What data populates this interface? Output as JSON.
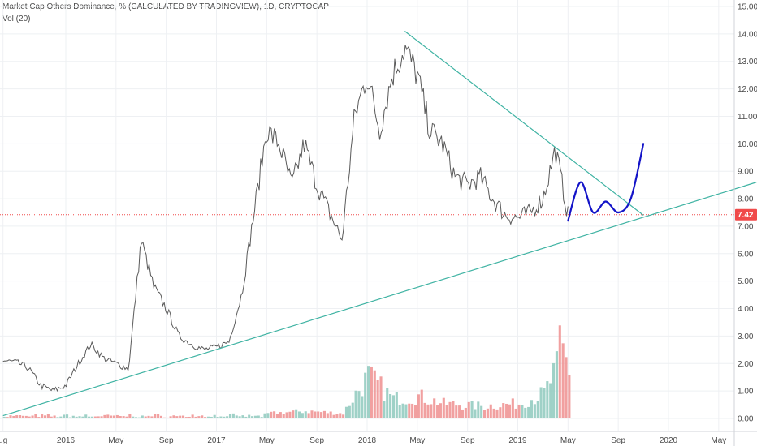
{
  "header": {
    "title": "Market Cap Others Dominance, % (CALCULATED BY TRADINGVIEW), 1D, CRYPTOCAP",
    "volume_label": "Vol (20)"
  },
  "colors": {
    "up": "#8ec9bd",
    "down": "#ef8f8f",
    "price_line": "#5a5a5a",
    "trendline": "#3fb3a3",
    "projection": "#1414c8",
    "last_price_line": "#f04a4a",
    "grid": "#eef0f3",
    "axis_text": "#4a4a4a",
    "price_tag_bg": "#f04a4a"
  },
  "price_tag": {
    "value": 7.42,
    "label": "7.42"
  },
  "chart_data": {
    "type": "line",
    "title": "Market Cap Others Dominance, % (CALCULATED BY TRADINGVIEW), 1D, CRYPTOCAP",
    "ylabel": "",
    "xlabel": "",
    "ylim": [
      -0.3,
      15.2
    ],
    "grid": true,
    "y_ticks": [
      {
        "value": 0,
        "label": "0.00"
      },
      {
        "value": 1,
        "label": "1.00"
      },
      {
        "value": 2,
        "label": "2.00"
      },
      {
        "value": 3,
        "label": "3.00"
      },
      {
        "value": 4,
        "label": "4.00"
      },
      {
        "value": 5,
        "label": "5.00"
      },
      {
        "value": 6,
        "label": "6.00"
      },
      {
        "value": 7,
        "label": "7.00"
      },
      {
        "value": 8,
        "label": "8.00"
      },
      {
        "value": 9,
        "label": "9.00"
      },
      {
        "value": 10,
        "label": "10.00"
      },
      {
        "value": 11,
        "label": "11.00"
      },
      {
        "value": 12,
        "label": "12.00"
      },
      {
        "value": 13,
        "label": "13.00"
      },
      {
        "value": 14,
        "label": "14.00"
      },
      {
        "value": 15,
        "label": "15.00"
      }
    ],
    "x_ticks": [
      {
        "x": "2015-08",
        "label": "ug"
      },
      {
        "x": "2016-01",
        "label": "2016"
      },
      {
        "x": "2016-05",
        "label": "May"
      },
      {
        "x": "2016-09",
        "label": "Sep"
      },
      {
        "x": "2017-01",
        "label": "2017"
      },
      {
        "x": "2017-05",
        "label": "May"
      },
      {
        "x": "2017-09",
        "label": "Sep"
      },
      {
        "x": "2018-01",
        "label": "2018"
      },
      {
        "x": "2018-05",
        "label": "May"
      },
      {
        "x": "2018-09",
        "label": "Sep"
      },
      {
        "x": "2019-01",
        "label": "2019"
      },
      {
        "x": "2019-05",
        "label": "May"
      },
      {
        "x": "2019-09",
        "label": "Sep"
      },
      {
        "x": "2020-01",
        "label": "2020"
      },
      {
        "x": "2020-05",
        "label": "May"
      }
    ],
    "series": [
      {
        "name": "Market Cap Others Dominance",
        "points": [
          [
            "2015-08",
            2.1
          ],
          [
            "2015-09",
            2.05
          ],
          [
            "2015-10",
            1.85
          ],
          [
            "2015-11",
            1.2
          ],
          [
            "2015-12",
            1.0
          ],
          [
            "2016-01",
            1.2
          ],
          [
            "2016-02",
            2.0
          ],
          [
            "2016-03",
            2.7
          ],
          [
            "2016-04",
            2.2
          ],
          [
            "2016-05",
            2.0
          ],
          [
            "2016-06",
            1.8
          ],
          [
            "2016-07",
            6.5
          ],
          [
            "2016-08",
            4.8
          ],
          [
            "2016-09",
            4.0
          ],
          [
            "2016-10",
            3.0
          ],
          [
            "2016-11",
            2.7
          ],
          [
            "2016-12",
            2.5
          ],
          [
            "2017-01",
            2.6
          ],
          [
            "2017-02",
            2.8
          ],
          [
            "2017-03",
            4.5
          ],
          [
            "2017-04",
            7.5
          ],
          [
            "2017-05",
            10.5
          ],
          [
            "2017-06",
            10.0
          ],
          [
            "2017-07",
            8.5
          ],
          [
            "2017-08",
            10.0
          ],
          [
            "2017-09",
            8.5
          ],
          [
            "2017-10",
            7.5
          ],
          [
            "2017-11",
            6.5
          ],
          [
            "2017-12",
            11.0
          ],
          [
            "2018-01",
            12.5
          ],
          [
            "2018-02",
            10.5
          ],
          [
            "2018-03",
            12.5
          ],
          [
            "2018-04",
            13.5
          ],
          [
            "2018-05",
            12.5
          ],
          [
            "2018-06",
            10.5
          ],
          [
            "2018-07",
            10.0
          ],
          [
            "2018-08",
            8.8
          ],
          [
            "2018-09",
            8.5
          ],
          [
            "2018-10",
            8.8
          ],
          [
            "2018-11",
            8.0
          ],
          [
            "2018-12",
            7.4
          ],
          [
            "2019-01",
            7.3
          ],
          [
            "2019-02",
            7.5
          ],
          [
            "2019-03",
            8.0
          ],
          [
            "2019-04",
            9.8
          ],
          [
            "2019-05",
            7.4
          ]
        ]
      },
      {
        "name": "Vol (20)",
        "points": [
          [
            "2017-05",
            0.2
          ],
          [
            "2017-08",
            0.3
          ],
          [
            "2017-11",
            0.2
          ],
          [
            "2017-12",
            1.0
          ],
          [
            "2018-01",
            1.7
          ],
          [
            "2018-03",
            0.8
          ],
          [
            "2018-05",
            0.9
          ],
          [
            "2018-07",
            0.6
          ],
          [
            "2018-10",
            0.5
          ],
          [
            "2019-01",
            0.6
          ],
          [
            "2019-03",
            1.0
          ],
          [
            "2019-04",
            2.0
          ],
          [
            "2019-04",
            3.4
          ],
          [
            "2019-05",
            2.0
          ]
        ]
      }
    ],
    "trendlines": [
      {
        "name": "support",
        "from": [
          "2015-08",
          0.1
        ],
        "to": [
          "2020-08",
          8.6
        ]
      },
      {
        "name": "resistance",
        "from": [
          "2018-04",
          14.1
        ],
        "to": [
          "2019-11",
          7.4
        ]
      }
    ],
    "projection": {
      "name": "projection",
      "points": [
        [
          "2019-05",
          7.2
        ],
        [
          "2019-06",
          8.6
        ],
        [
          "2019-07",
          7.5
        ],
        [
          "2019-08",
          7.9
        ],
        [
          "2019-09",
          7.5
        ],
        [
          "2019-10",
          8.0
        ],
        [
          "2019-11",
          10.0
        ]
      ]
    }
  }
}
